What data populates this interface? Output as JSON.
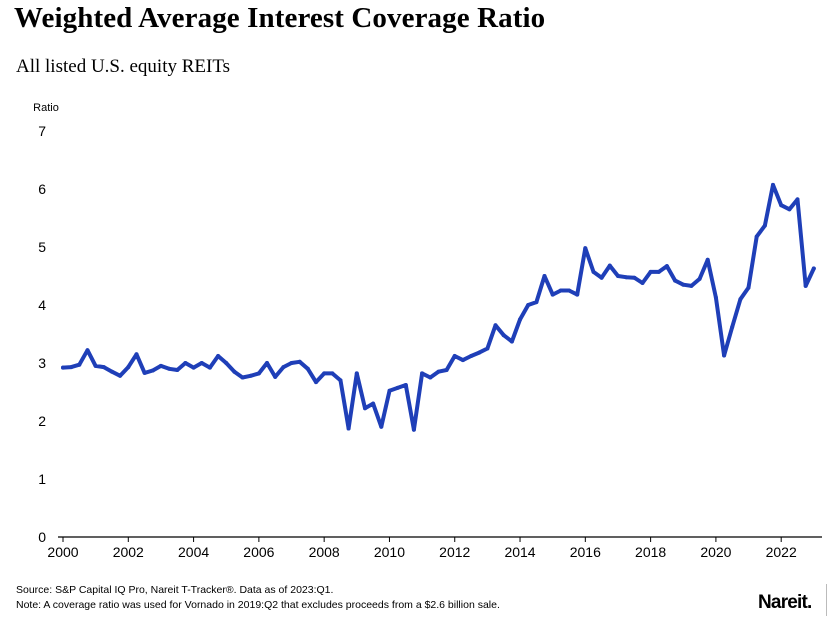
{
  "title": "Weighted Average Interest Coverage Ratio",
  "subtitle": "All listed U.S. equity REITs",
  "source_line1": "Source: S&P Capital IQ Pro, Nareit T-Tracker®. Data as of 2023:Q1.",
  "source_line2": "Note: A coverage ratio was used for Vornado in 2019:Q2 that excludes proceeds from a $2.6 billion sale.",
  "logo_text": "Nareit.",
  "colors": {
    "line": "#1f3fb8",
    "text": "#000000"
  },
  "chart_data": {
    "type": "line",
    "title": "Weighted Average Interest Coverage Ratio",
    "subtitle": "All listed U.S. equity REITs",
    "ylabel": "Ratio",
    "xlabel": "",
    "ylim": [
      0,
      7
    ],
    "yticks": [
      "0",
      "1",
      "2",
      "3",
      "4",
      "5",
      "6",
      "7"
    ],
    "xlim": [
      2000,
      2023.25
    ],
    "xticks": [
      "2000",
      "2002",
      "2004",
      "2006",
      "2008",
      "2010",
      "2012",
      "2014",
      "2016",
      "2018",
      "2020",
      "2022"
    ],
    "grid": false,
    "legend": "none",
    "x_start": "2000:Q1",
    "x_end": "2023:Q1",
    "frequency": "quarterly",
    "values": [
      2.92,
      2.93,
      2.97,
      3.22,
      2.95,
      2.93,
      2.85,
      2.78,
      2.93,
      3.15,
      2.83,
      2.87,
      2.95,
      2.9,
      2.88,
      3.0,
      2.92,
      3.0,
      2.92,
      3.12,
      3.0,
      2.85,
      2.75,
      2.78,
      2.82,
      3.0,
      2.76,
      2.93,
      3.0,
      3.02,
      2.9,
      2.67,
      2.82,
      2.82,
      2.7,
      1.87,
      2.82,
      2.22,
      2.3,
      1.9,
      2.52,
      2.57,
      2.62,
      1.85,
      2.82,
      2.75,
      2.85,
      2.88,
      3.12,
      3.05,
      3.12,
      3.18,
      3.25,
      3.65,
      3.48,
      3.37,
      3.75,
      4.0,
      4.05,
      4.5,
      4.18,
      4.25,
      4.25,
      4.18,
      4.98,
      4.57,
      4.47,
      4.68,
      4.5,
      4.48,
      4.47,
      4.38,
      4.57,
      4.57,
      4.67,
      4.42,
      4.35,
      4.33,
      4.45,
      4.78,
      4.13,
      3.13,
      3.62,
      4.1,
      4.3,
      5.18,
      5.37,
      6.07,
      5.72,
      5.65,
      5.82,
      4.33,
      4.63
    ]
  }
}
